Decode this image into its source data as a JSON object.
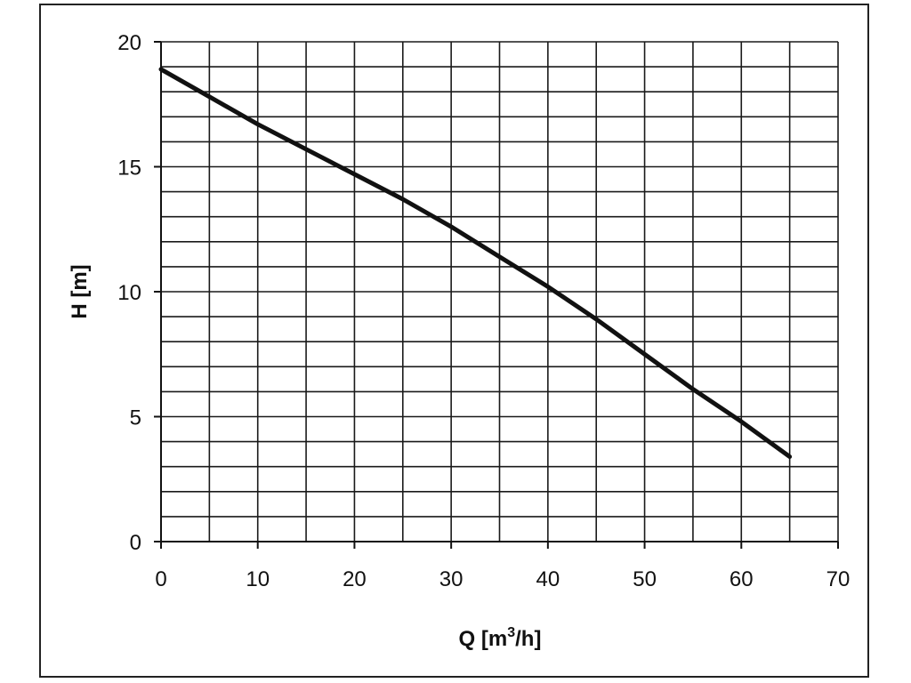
{
  "chart_data": {
    "type": "line",
    "title": "",
    "xlabel": "Q [m3/h]",
    "xlabel_parts": {
      "base": "Q [m",
      "sup": "3",
      "tail": "/h]"
    },
    "ylabel": "H [m]",
    "xlim": [
      0,
      70
    ],
    "ylim": [
      0,
      20
    ],
    "x_ticks": [
      0,
      10,
      20,
      30,
      40,
      50,
      60,
      70
    ],
    "y_ticks": [
      0,
      5,
      10,
      15,
      20
    ],
    "x_minor_step": 5,
    "y_minor_step": 1,
    "grid": true,
    "legend": "none",
    "line_color": "#111111",
    "series": [
      {
        "x": [
          0,
          5,
          10,
          15,
          20,
          25,
          30,
          35,
          40,
          45,
          50,
          55,
          60,
          65
        ],
        "values": [
          18.9,
          17.8,
          16.7,
          15.7,
          14.7,
          13.7,
          12.6,
          11.4,
          10.2,
          8.9,
          7.5,
          6.1,
          4.8,
          3.4
        ]
      }
    ]
  }
}
